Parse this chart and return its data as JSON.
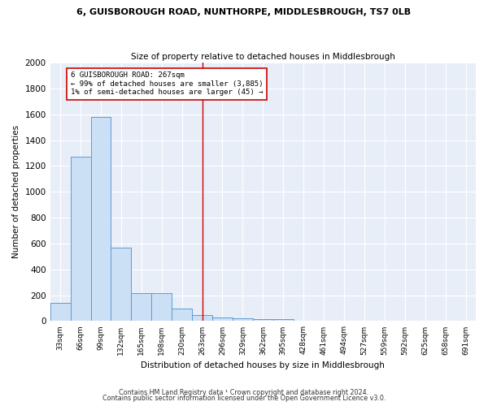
{
  "title": "6, GUISBOROUGH ROAD, NUNTHORPE, MIDDLESBROUGH, TS7 0LB",
  "subtitle": "Size of property relative to detached houses in Middlesbrough",
  "xlabel": "Distribution of detached houses by size in Middlesbrough",
  "ylabel": "Number of detached properties",
  "bar_color": "#cce0f5",
  "bar_edge_color": "#5b9bd5",
  "categories": [
    "33sqm",
    "66sqm",
    "99sqm",
    "132sqm",
    "165sqm",
    "198sqm",
    "230sqm",
    "263sqm",
    "296sqm",
    "329sqm",
    "362sqm",
    "395sqm",
    "428sqm",
    "461sqm",
    "494sqm",
    "527sqm",
    "559sqm",
    "592sqm",
    "625sqm",
    "658sqm",
    "691sqm"
  ],
  "values": [
    140,
    1270,
    1580,
    570,
    215,
    215,
    100,
    48,
    25,
    20,
    15,
    18,
    0,
    0,
    0,
    0,
    0,
    0,
    0,
    0,
    0
  ],
  "ylim": [
    0,
    2000
  ],
  "yticks": [
    0,
    200,
    400,
    600,
    800,
    1000,
    1200,
    1400,
    1600,
    1800,
    2000
  ],
  "vline_x_index": 7,
  "vline_color": "#cc0000",
  "annotation_line1": "6 GUISBOROUGH ROAD: 267sqm",
  "annotation_line2": "← 99% of detached houses are smaller (3,885)",
  "annotation_line3": "1% of semi-detached houses are larger (45) →",
  "bg_color": "#e8eef8",
  "grid_color": "#ffffff",
  "footer_line1": "Contains HM Land Registry data ¹ Crown copyright and database right 2024.",
  "footer_line2": "Contains public sector information licensed under the Open Government Licence v3.0."
}
